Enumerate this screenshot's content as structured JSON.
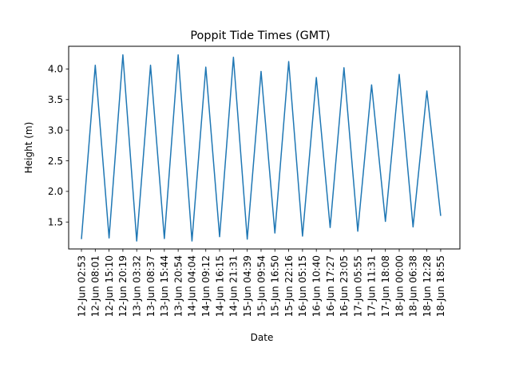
{
  "chart_data": {
    "type": "line",
    "title": "Poppit Tide Times (GMT)",
    "xlabel": "Date",
    "ylabel": "Height (m)",
    "x": [
      "12-Jun 02:53",
      "12-Jun 08:01",
      "12-Jun 15:10",
      "12-Jun 20:19",
      "13-Jun 03:32",
      "13-Jun 08:37",
      "13-Jun 15:44",
      "13-Jun 20:54",
      "14-Jun 04:04",
      "14-Jun 09:12",
      "14-Jun 16:15",
      "14-Jun 21:31",
      "15-Jun 04:39",
      "15-Jun 09:54",
      "15-Jun 16:50",
      "15-Jun 22:16",
      "16-Jun 05:15",
      "16-Jun 10:40",
      "16-Jun 17:27",
      "16-Jun 23:05",
      "17-Jun 05:55",
      "17-Jun 11:31",
      "17-Jun 18:08",
      "18-Jun 00:00",
      "18-Jun 06:38",
      "18-Jun 12:28",
      "18-Jun 18:55"
    ],
    "y": [
      1.22,
      4.06,
      1.24,
      4.23,
      1.19,
      4.06,
      1.23,
      4.23,
      1.19,
      4.03,
      1.26,
      4.19,
      1.22,
      3.96,
      1.32,
      4.12,
      1.27,
      3.86,
      1.41,
      4.02,
      1.35,
      3.74,
      1.51,
      3.91,
      1.42,
      3.64,
      1.6
    ],
    "yticks": [
      "1.5",
      "2.0",
      "2.5",
      "3.0",
      "3.5",
      "4.0"
    ],
    "ylim": [
      1.06,
      4.37
    ],
    "grid": false,
    "line_color": "#1f77b4"
  }
}
